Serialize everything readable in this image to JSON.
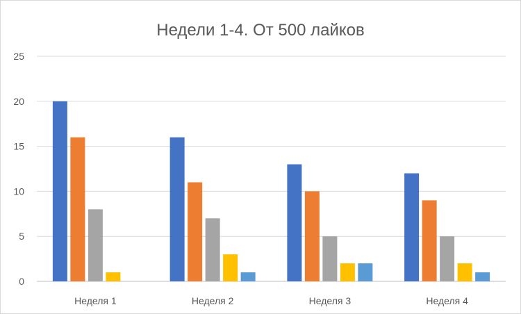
{
  "chart_data": {
    "type": "bar",
    "title": "Недели 1-4. От 500 лайков",
    "xlabel": "",
    "ylabel": "",
    "ylim": [
      0,
      25
    ],
    "yticks": [
      0,
      5,
      10,
      15,
      20,
      25
    ],
    "ytick_labels": [
      "0",
      "5",
      "10",
      "15",
      "20",
      "25"
    ],
    "grid": true,
    "legend": "none",
    "categories": [
      "Неделя 1",
      "Неделя 2",
      "Неделя 3",
      "Неделя 4"
    ],
    "series": [
      {
        "color": "#4472c4",
        "values": [
          20,
          16,
          13,
          12
        ]
      },
      {
        "color": "#ed7d31",
        "values": [
          16,
          11,
          10,
          9
        ]
      },
      {
        "color": "#a5a5a5",
        "values": [
          8,
          7,
          5,
          5
        ]
      },
      {
        "color": "#ffc000",
        "values": [
          1,
          3,
          2,
          2
        ]
      },
      {
        "color": "#5b9bd5",
        "values": [
          0,
          1,
          2,
          1
        ]
      }
    ]
  }
}
